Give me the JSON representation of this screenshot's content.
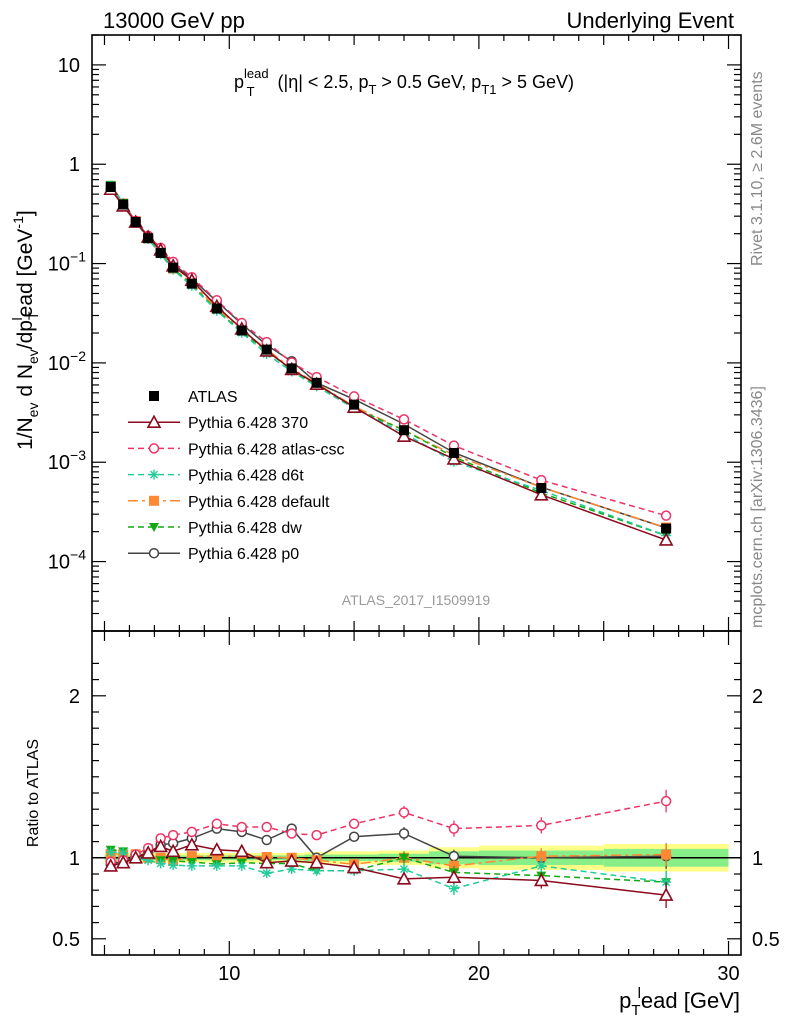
{
  "header": {
    "left": "13000 GeV pp",
    "right": "Underlying Event"
  },
  "side": {
    "rivet": "Rivet 3.1.10, ≥ 2.6M events",
    "mcplots": "mcplots.cern.ch [arXiv:1306.3436]"
  },
  "colors": {
    "atlas": "#000000",
    "p370": "#8b0a1e",
    "atlascsc": "#ee3366",
    "d6t": "#22cc99",
    "default": "#ff8833",
    "dw": "#11aa11",
    "p0": "#444444",
    "band_stat": "#88ee88",
    "band_total": "#ffff88"
  },
  "chart_data": [
    {
      "type": "line",
      "panel": "main",
      "title": "p_T^lead (|η| < 2.5, p_T > 0.5 GeV, p_T1 > 5 GeV)",
      "title_parts": {
        "p": "p",
        "sup": "lead",
        "sub_t": "T",
        "rest1": " (|η| < 2.5, p",
        "rest2": " > 0.5 GeV, p",
        "sub_t1": "T1",
        "rest3": " > 5 GeV)"
      },
      "ylabel": "1/N_ev d N_ev/dp_T^lead [GeV^-1]",
      "ylabel_parts": {
        "a": "1/N",
        "sub_ev": "ev",
        "b": " d N",
        "c": "/dp",
        "sub_t": "T",
        "sup_l": "l",
        "d": "ead [GeV",
        "sup_m1": "-1",
        "e": "]"
      },
      "yscale": "log",
      "ylim": [
        2e-05,
        20
      ],
      "xlim": [
        4.5,
        30.5
      ],
      "yticks": [
        {
          "v": 10,
          "label": "10"
        },
        {
          "v": 1,
          "label": "1"
        },
        {
          "v": 0.1,
          "label": "10",
          "exp": "−1"
        },
        {
          "v": 0.01,
          "label": "10",
          "exp": "−2"
        },
        {
          "v": 0.001,
          "label": "10",
          "exp": "−3"
        },
        {
          "v": 0.0001,
          "label": "10",
          "exp": "−4"
        }
      ],
      "watermark": "ATLAS_2017_I1509919",
      "legend_position": "center-left",
      "x": [
        5.25,
        5.75,
        6.25,
        6.75,
        7.25,
        7.75,
        8.5,
        9.5,
        10.5,
        11.5,
        12.5,
        13.5,
        15.0,
        17.0,
        19.0,
        22.5,
        27.5
      ],
      "series": [
        {
          "key": "atlas",
          "name": "ATLAS",
          "marker": "square",
          "y": [
            0.59,
            0.393,
            0.262,
            0.18,
            0.128,
            0.091,
            0.0628,
            0.0353,
            0.0212,
            0.0136,
            0.0088,
            0.0063,
            0.0038,
            0.0021,
            0.00124,
            0.00055,
            0.000215
          ]
        },
        {
          "key": "p370",
          "name": "Pythia 6.428 370",
          "marker": "triangle-open",
          "dash": "none",
          "y": [
            0.56,
            0.38,
            0.262,
            0.185,
            0.137,
            0.095,
            0.0678,
            0.0371,
            0.022,
            0.0132,
            0.0086,
            0.0061,
            0.00358,
            0.00183,
            0.00108,
            0.00047,
            0.000165
          ]
        },
        {
          "key": "atlascsc",
          "name": "Pythia 6.428 atlas-csc",
          "marker": "circle-open",
          "dash": "6,4",
          "y": [
            0.575,
            0.387,
            0.268,
            0.19,
            0.144,
            0.104,
            0.0728,
            0.0427,
            0.0252,
            0.0162,
            0.0101,
            0.0072,
            0.0046,
            0.0027,
            0.00147,
            0.00066,
            0.00029
          ]
        },
        {
          "key": "d6t",
          "name": "Pythia 6.428 d6t",
          "marker": "star",
          "dash": "6,4",
          "y": [
            0.61,
            0.405,
            0.262,
            0.177,
            0.124,
            0.087,
            0.0596,
            0.0335,
            0.0201,
            0.0123,
            0.0082,
            0.0058,
            0.0035,
            0.00196,
            0.00101,
            0.00052,
            0.000183
          ]
        },
        {
          "key": "default",
          "name": "Pythia 6.428 default",
          "marker": "square",
          "dash": "10,4,3,4",
          "y": [
            0.605,
            0.402,
            0.268,
            0.18,
            0.128,
            0.089,
            0.0634,
            0.0356,
            0.0214,
            0.0137,
            0.0088,
            0.0062,
            0.00365,
            0.0021,
            0.00118,
            0.00056,
            0.00022
          ]
        },
        {
          "key": "dw",
          "name": "Pythia 6.428 dw",
          "marker": "triangle-down",
          "dash": "6,4",
          "y": [
            0.62,
            0.408,
            0.265,
            0.181,
            0.126,
            0.089,
            0.0611,
            0.0339,
            0.0206,
            0.0132,
            0.0085,
            0.0058,
            0.0035,
            0.0021,
            0.00113,
            0.00049,
            0.000182
          ]
        },
        {
          "key": "p0",
          "name": "Pythia 6.428 p0",
          "marker": "circle-open",
          "dash": "none",
          "y": [
            0.565,
            0.385,
            0.265,
            0.185,
            0.138,
            0.099,
            0.0703,
            0.0417,
            0.0246,
            0.0151,
            0.0104,
            0.0063,
            0.0043,
            0.00242,
            0.00125,
            0.00056,
            0.000218
          ]
        }
      ]
    },
    {
      "type": "line",
      "panel": "ratio",
      "ylabel": "Ratio to ATLAS",
      "ylim": [
        0.4,
        2.4
      ],
      "yticks": [
        {
          "v": 0.5,
          "label": "0.5"
        },
        {
          "v": 1,
          "label": "1"
        },
        {
          "v": 2,
          "label": "2"
        }
      ],
      "xlabel": "p_T^lead [GeV]",
      "xlabel_parts": {
        "p": "p",
        "sub_t": "T",
        "sup_l": "l",
        "rest": "ead [GeV]"
      },
      "xticks": [
        10,
        20,
        30
      ],
      "band_edges": [
        5,
        5.5,
        6,
        6.5,
        7,
        7.5,
        8,
        9,
        10,
        11,
        12,
        13,
        14,
        16,
        18,
        20,
        25,
        30
      ],
      "band_stat": [
        0.015,
        0.015,
        0.015,
        0.015,
        0.015,
        0.015,
        0.015,
        0.015,
        0.015,
        0.015,
        0.015,
        0.02,
        0.02,
        0.025,
        0.04,
        0.045,
        0.055
      ],
      "band_total": [
        0.03,
        0.03,
        0.03,
        0.03,
        0.03,
        0.03,
        0.03,
        0.03,
        0.03,
        0.03,
        0.03,
        0.035,
        0.04,
        0.045,
        0.065,
        0.075,
        0.085
      ],
      "x": [
        5.25,
        5.75,
        6.25,
        6.75,
        7.25,
        7.75,
        8.5,
        9.5,
        10.5,
        11.5,
        12.5,
        13.5,
        15.0,
        17.0,
        19.0,
        22.5,
        27.5
      ],
      "series": [
        {
          "key": "p370",
          "name": "Pythia 6.428 370",
          "y": [
            0.95,
            0.97,
            1.0,
            1.03,
            1.07,
            1.04,
            1.08,
            1.05,
            1.04,
            0.97,
            0.98,
            0.97,
            0.94,
            0.87,
            0.88,
            0.86,
            0.77
          ],
          "err": [
            0.01,
            0.01,
            0.01,
            0.01,
            0.01,
            0.01,
            0.01,
            0.01,
            0.01,
            0.02,
            0.02,
            0.02,
            0.03,
            0.03,
            0.04,
            0.05,
            0.08
          ]
        },
        {
          "key": "atlascsc",
          "name": "Pythia 6.428 atlas-csc",
          "y": [
            0.975,
            0.985,
            1.02,
            1.06,
            1.12,
            1.14,
            1.16,
            1.21,
            1.19,
            1.19,
            1.15,
            1.14,
            1.21,
            1.28,
            1.18,
            1.2,
            1.35
          ],
          "err": [
            0.01,
            0.01,
            0.01,
            0.01,
            0.01,
            0.01,
            0.01,
            0.01,
            0.01,
            0.02,
            0.02,
            0.02,
            0.03,
            0.04,
            0.05,
            0.05,
            0.07
          ]
        },
        {
          "key": "d6t",
          "name": "Pythia 6.428 d6t",
          "y": [
            1.035,
            1.03,
            1.0,
            0.985,
            0.965,
            0.955,
            0.95,
            0.95,
            0.95,
            0.905,
            0.93,
            0.92,
            0.92,
            0.93,
            0.81,
            0.95,
            0.85
          ],
          "err": [
            0.01,
            0.01,
            0.01,
            0.01,
            0.01,
            0.01,
            0.01,
            0.01,
            0.01,
            0.02,
            0.02,
            0.02,
            0.03,
            0.04,
            0.04,
            0.05,
            0.07
          ]
        },
        {
          "key": "default",
          "name": "Pythia 6.428 default",
          "y": [
            1.025,
            1.022,
            1.022,
            1.0,
            1.0,
            0.98,
            1.01,
            1.01,
            1.01,
            1.005,
            1.0,
            0.985,
            0.96,
            1.0,
            0.95,
            1.01,
            1.02
          ],
          "err": [
            0.01,
            0.01,
            0.01,
            0.01,
            0.01,
            0.01,
            0.01,
            0.01,
            0.01,
            0.02,
            0.02,
            0.02,
            0.03,
            0.03,
            0.04,
            0.05,
            0.07
          ]
        },
        {
          "key": "dw",
          "name": "Pythia 6.428 dw",
          "y": [
            1.05,
            1.04,
            1.01,
            1.005,
            0.985,
            0.98,
            0.975,
            0.96,
            0.97,
            0.965,
            0.965,
            0.92,
            0.92,
            1.0,
            0.91,
            0.89,
            0.85
          ],
          "err": [
            0.01,
            0.01,
            0.01,
            0.01,
            0.01,
            0.01,
            0.01,
            0.01,
            0.01,
            0.02,
            0.02,
            0.02,
            0.03,
            0.04,
            0.04,
            0.05,
            0.07
          ]
        },
        {
          "key": "p0",
          "name": "Pythia 6.428 p0",
          "y": [
            0.96,
            0.98,
            1.01,
            1.03,
            1.08,
            1.09,
            1.12,
            1.18,
            1.16,
            1.11,
            1.18,
            1.0,
            1.13,
            1.15,
            1.01,
            1.0,
            1.01
          ],
          "err": [
            0.01,
            0.01,
            0.01,
            0.01,
            0.01,
            0.01,
            0.01,
            0.01,
            0.01,
            0.02,
            0.02,
            0.02,
            0.03,
            0.04,
            0.04,
            0.05,
            0.08
          ]
        }
      ]
    }
  ]
}
